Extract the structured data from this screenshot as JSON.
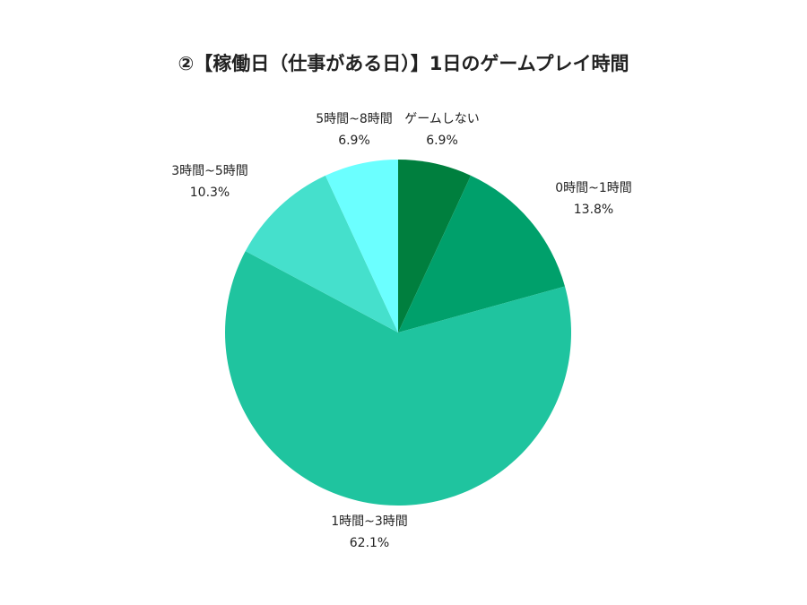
{
  "chart_data": {
    "type": "pie",
    "title": "②【稼働日（仕事がある日）】1日のゲームプレイ時間",
    "slices": [
      {
        "label": "ゲームしない",
        "value": 6.9,
        "value_label": "6.9%",
        "color": "#007f3e"
      },
      {
        "label": "0時間~1時間",
        "value": 13.8,
        "value_label": "13.8%",
        "color": "#00a06b"
      },
      {
        "label": "1時間~3時間",
        "value": 62.1,
        "value_label": "62.1%",
        "color": "#1fc49f"
      },
      {
        "label": "3時間~5時間",
        "value": 10.3,
        "value_label": "10.3%",
        "color": "#45e0cc"
      },
      {
        "label": "5時間~8時間",
        "value": 6.9,
        "value_label": "6.9%",
        "color": "#6bffff"
      }
    ],
    "start_angle_deg": 0,
    "direction": "clockwise",
    "legend": "none"
  }
}
